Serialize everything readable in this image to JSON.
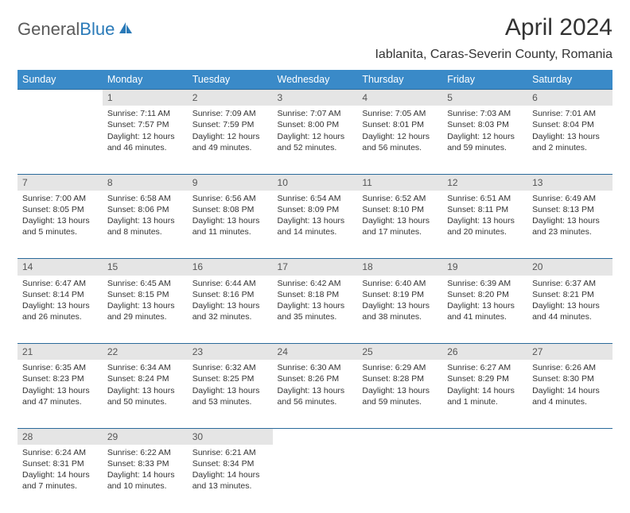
{
  "logo": {
    "text1": "General",
    "text2": "Blue"
  },
  "title": "April 2024",
  "location": "Iablanita, Caras-Severin County, Romania",
  "day_headers": [
    "Sunday",
    "Monday",
    "Tuesday",
    "Wednesday",
    "Thursday",
    "Friday",
    "Saturday"
  ],
  "colors": {
    "header_bg": "#3a8ac8",
    "header_text": "#ffffff",
    "daynum_bg": "#e5e5e5",
    "border": "#2a6a9a",
    "background": "#ffffff",
    "text": "#333333",
    "logo_gray": "#5a5a5a",
    "logo_blue": "#2a7ab8"
  },
  "typography": {
    "title_fontsize": 30,
    "location_fontsize": 16,
    "header_fontsize": 12.5,
    "cell_fontsize": 10.5,
    "logo_fontsize": 22
  },
  "weeks": [
    [
      null,
      {
        "n": "1",
        "sunrise": "Sunrise: 7:11 AM",
        "sunset": "Sunset: 7:57 PM",
        "d1": "Daylight: 12 hours",
        "d2": "and 46 minutes."
      },
      {
        "n": "2",
        "sunrise": "Sunrise: 7:09 AM",
        "sunset": "Sunset: 7:59 PM",
        "d1": "Daylight: 12 hours",
        "d2": "and 49 minutes."
      },
      {
        "n": "3",
        "sunrise": "Sunrise: 7:07 AM",
        "sunset": "Sunset: 8:00 PM",
        "d1": "Daylight: 12 hours",
        "d2": "and 52 minutes."
      },
      {
        "n": "4",
        "sunrise": "Sunrise: 7:05 AM",
        "sunset": "Sunset: 8:01 PM",
        "d1": "Daylight: 12 hours",
        "d2": "and 56 minutes."
      },
      {
        "n": "5",
        "sunrise": "Sunrise: 7:03 AM",
        "sunset": "Sunset: 8:03 PM",
        "d1": "Daylight: 12 hours",
        "d2": "and 59 minutes."
      },
      {
        "n": "6",
        "sunrise": "Sunrise: 7:01 AM",
        "sunset": "Sunset: 8:04 PM",
        "d1": "Daylight: 13 hours",
        "d2": "and 2 minutes."
      }
    ],
    [
      {
        "n": "7",
        "sunrise": "Sunrise: 7:00 AM",
        "sunset": "Sunset: 8:05 PM",
        "d1": "Daylight: 13 hours",
        "d2": "and 5 minutes."
      },
      {
        "n": "8",
        "sunrise": "Sunrise: 6:58 AM",
        "sunset": "Sunset: 8:06 PM",
        "d1": "Daylight: 13 hours",
        "d2": "and 8 minutes."
      },
      {
        "n": "9",
        "sunrise": "Sunrise: 6:56 AM",
        "sunset": "Sunset: 8:08 PM",
        "d1": "Daylight: 13 hours",
        "d2": "and 11 minutes."
      },
      {
        "n": "10",
        "sunrise": "Sunrise: 6:54 AM",
        "sunset": "Sunset: 8:09 PM",
        "d1": "Daylight: 13 hours",
        "d2": "and 14 minutes."
      },
      {
        "n": "11",
        "sunrise": "Sunrise: 6:52 AM",
        "sunset": "Sunset: 8:10 PM",
        "d1": "Daylight: 13 hours",
        "d2": "and 17 minutes."
      },
      {
        "n": "12",
        "sunrise": "Sunrise: 6:51 AM",
        "sunset": "Sunset: 8:11 PM",
        "d1": "Daylight: 13 hours",
        "d2": "and 20 minutes."
      },
      {
        "n": "13",
        "sunrise": "Sunrise: 6:49 AM",
        "sunset": "Sunset: 8:13 PM",
        "d1": "Daylight: 13 hours",
        "d2": "and 23 minutes."
      }
    ],
    [
      {
        "n": "14",
        "sunrise": "Sunrise: 6:47 AM",
        "sunset": "Sunset: 8:14 PM",
        "d1": "Daylight: 13 hours",
        "d2": "and 26 minutes."
      },
      {
        "n": "15",
        "sunrise": "Sunrise: 6:45 AM",
        "sunset": "Sunset: 8:15 PM",
        "d1": "Daylight: 13 hours",
        "d2": "and 29 minutes."
      },
      {
        "n": "16",
        "sunrise": "Sunrise: 6:44 AM",
        "sunset": "Sunset: 8:16 PM",
        "d1": "Daylight: 13 hours",
        "d2": "and 32 minutes."
      },
      {
        "n": "17",
        "sunrise": "Sunrise: 6:42 AM",
        "sunset": "Sunset: 8:18 PM",
        "d1": "Daylight: 13 hours",
        "d2": "and 35 minutes."
      },
      {
        "n": "18",
        "sunrise": "Sunrise: 6:40 AM",
        "sunset": "Sunset: 8:19 PM",
        "d1": "Daylight: 13 hours",
        "d2": "and 38 minutes."
      },
      {
        "n": "19",
        "sunrise": "Sunrise: 6:39 AM",
        "sunset": "Sunset: 8:20 PM",
        "d1": "Daylight: 13 hours",
        "d2": "and 41 minutes."
      },
      {
        "n": "20",
        "sunrise": "Sunrise: 6:37 AM",
        "sunset": "Sunset: 8:21 PM",
        "d1": "Daylight: 13 hours",
        "d2": "and 44 minutes."
      }
    ],
    [
      {
        "n": "21",
        "sunrise": "Sunrise: 6:35 AM",
        "sunset": "Sunset: 8:23 PM",
        "d1": "Daylight: 13 hours",
        "d2": "and 47 minutes."
      },
      {
        "n": "22",
        "sunrise": "Sunrise: 6:34 AM",
        "sunset": "Sunset: 8:24 PM",
        "d1": "Daylight: 13 hours",
        "d2": "and 50 minutes."
      },
      {
        "n": "23",
        "sunrise": "Sunrise: 6:32 AM",
        "sunset": "Sunset: 8:25 PM",
        "d1": "Daylight: 13 hours",
        "d2": "and 53 minutes."
      },
      {
        "n": "24",
        "sunrise": "Sunrise: 6:30 AM",
        "sunset": "Sunset: 8:26 PM",
        "d1": "Daylight: 13 hours",
        "d2": "and 56 minutes."
      },
      {
        "n": "25",
        "sunrise": "Sunrise: 6:29 AM",
        "sunset": "Sunset: 8:28 PM",
        "d1": "Daylight: 13 hours",
        "d2": "and 59 minutes."
      },
      {
        "n": "26",
        "sunrise": "Sunrise: 6:27 AM",
        "sunset": "Sunset: 8:29 PM",
        "d1": "Daylight: 14 hours",
        "d2": "and 1 minute."
      },
      {
        "n": "27",
        "sunrise": "Sunrise: 6:26 AM",
        "sunset": "Sunset: 8:30 PM",
        "d1": "Daylight: 14 hours",
        "d2": "and 4 minutes."
      }
    ],
    [
      {
        "n": "28",
        "sunrise": "Sunrise: 6:24 AM",
        "sunset": "Sunset: 8:31 PM",
        "d1": "Daylight: 14 hours",
        "d2": "and 7 minutes."
      },
      {
        "n": "29",
        "sunrise": "Sunrise: 6:22 AM",
        "sunset": "Sunset: 8:33 PM",
        "d1": "Daylight: 14 hours",
        "d2": "and 10 minutes."
      },
      {
        "n": "30",
        "sunrise": "Sunrise: 6:21 AM",
        "sunset": "Sunset: 8:34 PM",
        "d1": "Daylight: 14 hours",
        "d2": "and 13 minutes."
      },
      null,
      null,
      null,
      null
    ]
  ]
}
